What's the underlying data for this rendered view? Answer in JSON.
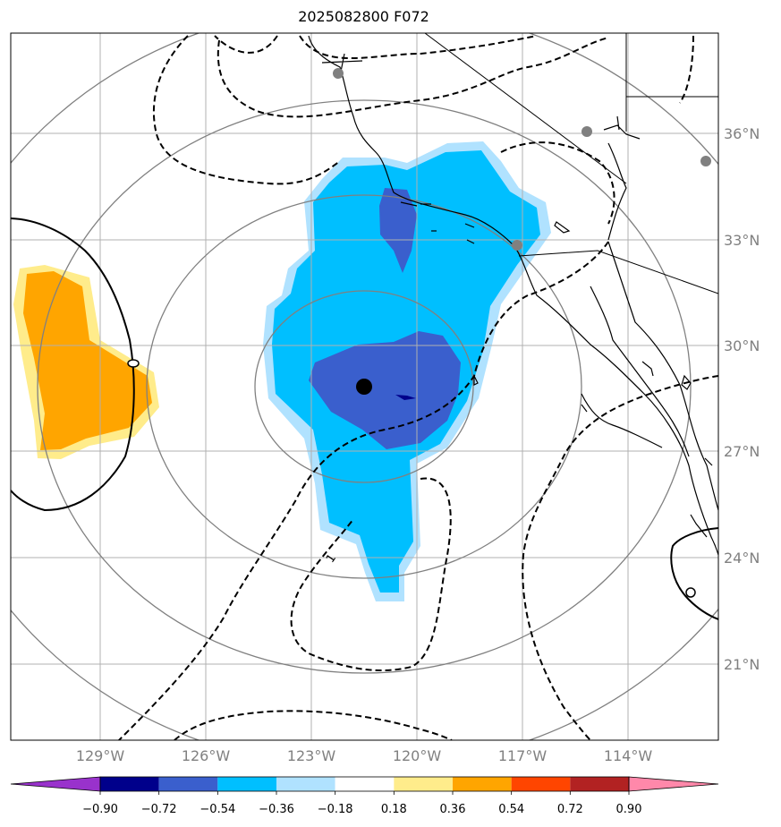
{
  "title": "2025082800 F072",
  "lat_labels": [
    "36°N",
    "33°N",
    "30°N",
    "27°N",
    "24°N",
    "21°N"
  ],
  "lon_labels": [
    "129°W",
    "126°W",
    "123°W",
    "120°W",
    "117°W",
    "114°W"
  ],
  "contour_label": "1",
  "colorbar": {
    "tick_labels": [
      "−0.90",
      "−0.72",
      "−0.54",
      "−0.36",
      "−0.18",
      "0.18",
      "0.36",
      "0.54",
      "0.72",
      "0.90"
    ],
    "colors": [
      "#9932cc",
      "#00008b",
      "#3a5fcd",
      "#00bfff",
      "#b0e2ff",
      "#ffffff",
      "#ffec8b",
      "#ffa500",
      "#ff4500",
      "#b22222",
      "#ff88aa"
    ]
  },
  "palette": {
    "frame": "#000000",
    "grid": "#b0b0b0",
    "rings": "#808080",
    "coast": "#000000",
    "storm_center": "#000000",
    "stations": "#808080"
  }
}
